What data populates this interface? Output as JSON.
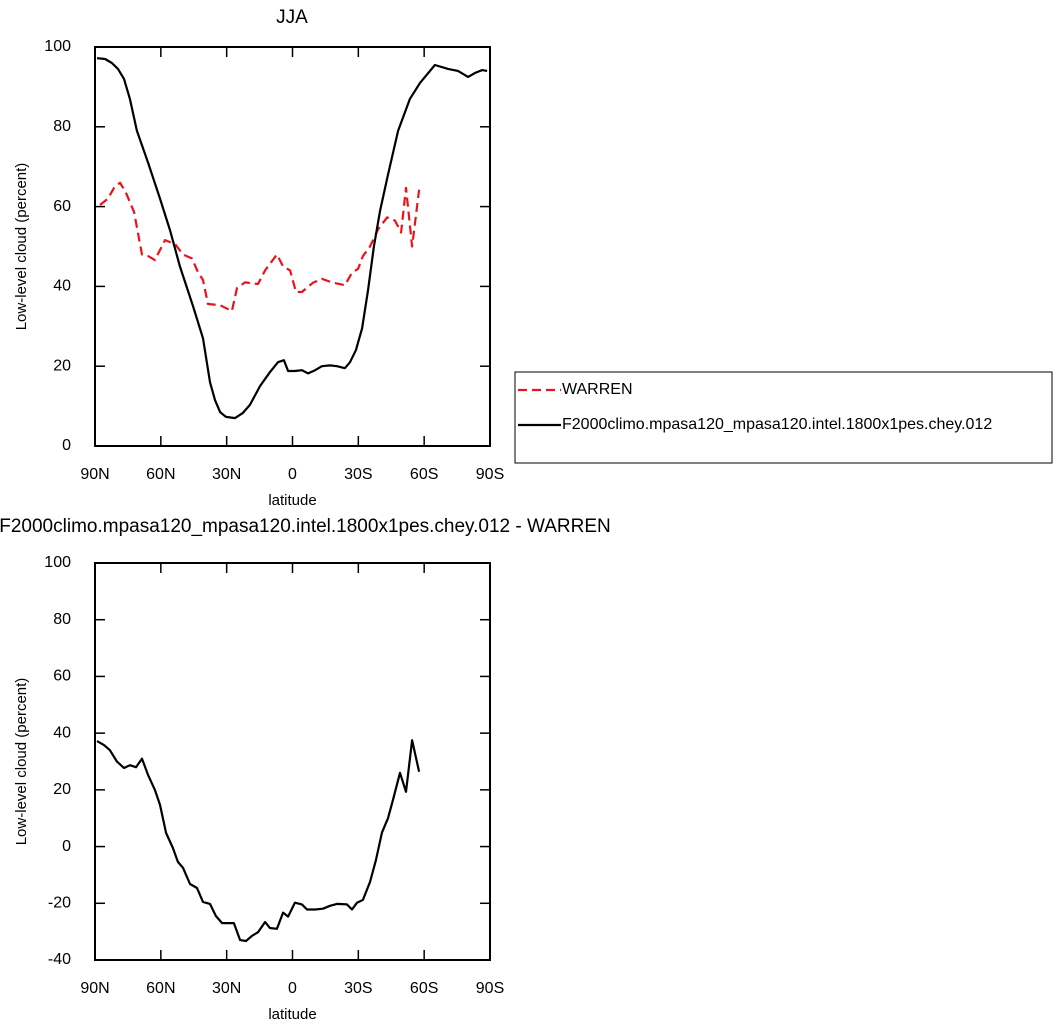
{
  "chart_data": [
    {
      "type": "line",
      "title": "JJA",
      "xlabel": "latitude",
      "ylabel": "Low-level cloud (percent)",
      "xlim": [
        90,
        -90
      ],
      "xticks": [
        {
          "value": 90,
          "label": "90N"
        },
        {
          "value": 60,
          "label": "60N"
        },
        {
          "value": 30,
          "label": "30N"
        },
        0,
        {
          "value": -30,
          "label": "30S"
        },
        {
          "value": -60,
          "label": "60S"
        },
        {
          "value": -90,
          "label": "90S"
        }
      ],
      "ylim": [
        0,
        100
      ],
      "yticks": [
        0,
        20,
        40,
        60,
        80,
        100
      ],
      "legend": "right",
      "series": [
        {
          "name": "WARREN",
          "color": "#e8141c",
          "dash": true,
          "x": [
            87.7,
            84.1,
            81.3,
            78.6,
            75.9,
            72.2,
            68.6,
            65.8,
            62.7,
            58.1,
            53.5,
            49.9,
            45.8,
            43.1,
            40.8,
            38.5,
            33.0,
            27.6,
            25.3,
            21.6,
            15.7,
            12.5,
            7.1,
            4.3,
            1.1,
            -1.6,
            -4.3,
            -9.3,
            -13.4,
            -18.0,
            -23.9,
            -27.1,
            -29.9,
            -32.1,
            -35.3,
            -39.0,
            -43.1,
            -46.7,
            -49.5,
            -51.7,
            -54.5,
            -57.7
          ],
          "values": [
            60.4,
            62,
            64.7,
            66,
            63.5,
            58.6,
            48,
            47.6,
            46.6,
            51.6,
            50.6,
            48,
            47,
            43.6,
            41.6,
            35.6,
            35.3,
            33.8,
            39.6,
            41,
            40.6,
            44,
            48,
            45,
            44,
            38.6,
            38.6,
            40.9,
            41.9,
            41,
            40.3,
            43.4,
            44.4,
            47.6,
            50,
            54.3,
            57.3,
            56.5,
            53.5,
            64.7,
            50,
            64.2
          ]
        },
        {
          "name": "F2000climo.mpasa120_mpasa120.intel.1800x1pes.chey.012",
          "color": "#000000",
          "dash": false,
          "x": [
            89.1,
            85.4,
            82.3,
            79.5,
            76.8,
            74.1,
            70.9,
            65.8,
            60.4,
            55.8,
            51.3,
            45.3,
            40.8,
            37.6,
            35.3,
            33.0,
            30.3,
            26.2,
            22.6,
            19.4,
            14.8,
            10.3,
            6.6,
            3.9,
            2.0,
            -1.1,
            -4.3,
            -7.1,
            -10.3,
            -13.4,
            -17.1,
            -20.3,
            -23.9,
            -26.2,
            -28.9,
            -31.7,
            -34.4,
            -37.1,
            -39.9,
            -43.5,
            -48.1,
            -53.5,
            -58.1,
            -64.9,
            -70.9,
            -75.4,
            -80.0,
            -83.2,
            -86.4,
            -88.7
          ],
          "values": [
            97.2,
            97,
            96,
            94.5,
            92,
            87,
            79,
            71,
            62,
            54,
            45,
            35,
            27,
            16,
            11.5,
            8.5,
            7.3,
            7,
            8.3,
            10.3,
            15,
            18.5,
            21,
            21.5,
            18.8,
            18.8,
            19,
            18.2,
            19,
            20,
            20.2,
            20,
            19.5,
            21,
            24,
            29.5,
            39,
            50,
            59,
            68,
            79,
            87,
            91,
            95.5,
            94.5,
            94,
            92.5,
            93.5,
            94.2,
            94
          ]
        }
      ]
    },
    {
      "type": "line",
      "title": "F2000climo.mpasa120_mpasa120.intel.1800x1pes.chey.012 - WARREN",
      "xlabel": "latitude",
      "ylabel": "Low-level cloud (percent)",
      "xlim": [
        90,
        -90
      ],
      "xticks": [
        {
          "value": 90,
          "label": "90N"
        },
        {
          "value": 60,
          "label": "60N"
        },
        {
          "value": 30,
          "label": "30N"
        },
        0,
        {
          "value": -30,
          "label": "30S"
        },
        {
          "value": -60,
          "label": "60S"
        },
        {
          "value": -90,
          "label": "90S"
        }
      ],
      "ylim": [
        -40,
        100
      ],
      "yticks": [
        -40,
        -20,
        0,
        20,
        40,
        60,
        80,
        100
      ],
      "series": [
        {
          "color": "#000000",
          "dash": false,
          "x": [
            89.1,
            85.9,
            83.2,
            80.0,
            76.8,
            74.1,
            71.3,
            68.6,
            65.8,
            62.7,
            60.4,
            57.6,
            54.5,
            52.2,
            49.9,
            46.7,
            43.5,
            40.8,
            37.6,
            34.9,
            32.1,
            26.7,
            23.9,
            21.2,
            18.5,
            15.7,
            12.5,
            10.3,
            7.1,
            4.3,
            2.0,
            -1.1,
            -4.3,
            -6.6,
            -10.3,
            -13.9,
            -17.1,
            -20.3,
            -24.8,
            -27.1,
            -29.4,
            -32.1,
            -35.3,
            -38.0,
            -40.8,
            -43.5,
            -45.8,
            -49.0,
            -51.7,
            -54.5,
            -57.7
          ],
          "values": [
            37.2,
            35.8,
            34,
            30,
            27.7,
            28.7,
            28,
            31,
            25.2,
            20,
            14.7,
            4.8,
            -0.5,
            -5.4,
            -7.5,
            -13.2,
            -14.6,
            -19.5,
            -20.2,
            -24.5,
            -27,
            -27,
            -33,
            -33.3,
            -31.5,
            -30.2,
            -26.6,
            -28.7,
            -29,
            -23.3,
            -24.7,
            -19.8,
            -20.4,
            -22.2,
            -22.2,
            -21.9,
            -20.9,
            -20.2,
            -20.4,
            -22.2,
            -19.8,
            -18.8,
            -12.5,
            -4.8,
            5,
            10,
            16.5,
            26,
            19.3,
            37.5,
            26.4
          ]
        }
      ]
    }
  ]
}
